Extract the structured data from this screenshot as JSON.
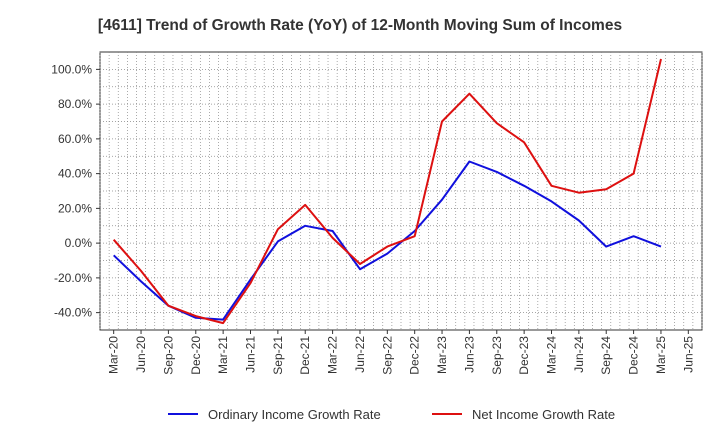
{
  "chart_data": {
    "type": "line",
    "title": "[4611]  Trend of Growth Rate (YoY) of 12-Month Moving Sum of Incomes",
    "xlabel": "",
    "ylabel": "",
    "x_tick_labels": [
      "Mar-20",
      "Jun-20",
      "Sep-20",
      "Dec-20",
      "Mar-21",
      "Jun-21",
      "Sep-21",
      "Dec-21",
      "Mar-22",
      "Jun-22",
      "Sep-22",
      "Dec-22",
      "Mar-23",
      "Jun-23",
      "Sep-23",
      "Dec-23",
      "Mar-24",
      "Jun-24",
      "Sep-24",
      "Dec-24",
      "Mar-25",
      "Jun-25"
    ],
    "y_tick_labels": [
      "-40.0%",
      "-20.0%",
      "0.0%",
      "20.0%",
      "40.0%",
      "60.0%",
      "80.0%",
      "100.0%"
    ],
    "ylim": [
      -50,
      110
    ],
    "grid": true,
    "legend_position": "bottom",
    "series": [
      {
        "name": "Ordinary Income Growth Rate",
        "color": "#1010dd",
        "values": [
          -7,
          -22,
          -36,
          -43,
          -44,
          -21,
          1,
          10,
          7,
          -15,
          -6,
          7,
          25,
          47,
          41,
          33,
          24,
          13,
          -2,
          4,
          -2
        ]
      },
      {
        "name": "Net Income Growth Rate",
        "color": "#dd1010",
        "values": [
          2,
          -16,
          -36,
          -42,
          -46,
          -23,
          8,
          22,
          3,
          -12,
          -2,
          4,
          70,
          86,
          69,
          58,
          33,
          29,
          31,
          40,
          106
        ]
      }
    ]
  }
}
